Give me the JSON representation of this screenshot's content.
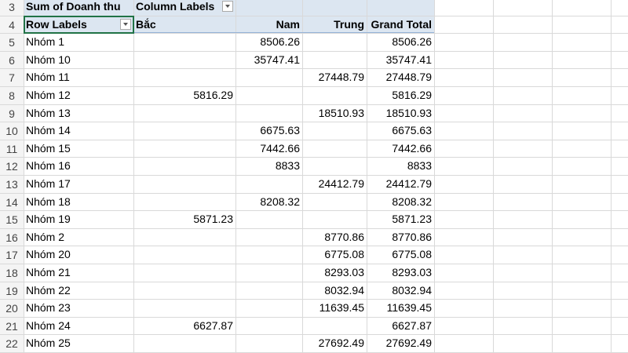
{
  "sheet": {
    "row_numbers": [
      3,
      4,
      5,
      6,
      7,
      8,
      9,
      10,
      11,
      12,
      13,
      14,
      15,
      16,
      17,
      18,
      19,
      20,
      21,
      22
    ],
    "pivot": {
      "value_field": "Sum of Doanh thu",
      "column_labels": "Column Labels",
      "columns": [
        "Row Labels",
        "Bắc",
        "Nam",
        "Trung",
        "Grand Total"
      ],
      "rows": [
        [
          "Nhóm 1",
          null,
          8506.26,
          null,
          8506.26
        ],
        [
          "Nhóm 10",
          null,
          35747.41,
          null,
          35747.41
        ],
        [
          "Nhóm 11",
          null,
          null,
          27448.79,
          27448.79
        ],
        [
          "Nhóm 12",
          5816.29,
          null,
          null,
          5816.29
        ],
        [
          "Nhóm 13",
          null,
          null,
          18510.93,
          18510.93
        ],
        [
          "Nhóm 14",
          null,
          6675.63,
          null,
          6675.63
        ],
        [
          "Nhóm 15",
          null,
          7442.66,
          null,
          7442.66
        ],
        [
          "Nhóm 16",
          null,
          8833,
          null,
          8833
        ],
        [
          "Nhóm 17",
          null,
          null,
          24412.79,
          24412.79
        ],
        [
          "Nhóm 18",
          null,
          8208.32,
          null,
          8208.32
        ],
        [
          "Nhóm 19",
          5871.23,
          null,
          null,
          5871.23
        ],
        [
          "Nhóm 2",
          null,
          null,
          8770.86,
          8770.86
        ],
        [
          "Nhóm 20",
          null,
          null,
          6775.08,
          6775.08
        ],
        [
          "Nhóm 21",
          null,
          null,
          8293.03,
          8293.03
        ],
        [
          "Nhóm 22",
          null,
          null,
          8032.94,
          8032.94
        ],
        [
          "Nhóm 23",
          null,
          null,
          11639.45,
          11639.45
        ],
        [
          "Nhóm 24",
          6627.87,
          null,
          null,
          6627.87
        ],
        [
          "Nhóm 25",
          null,
          null,
          27692.49,
          27692.49
        ]
      ]
    }
  }
}
